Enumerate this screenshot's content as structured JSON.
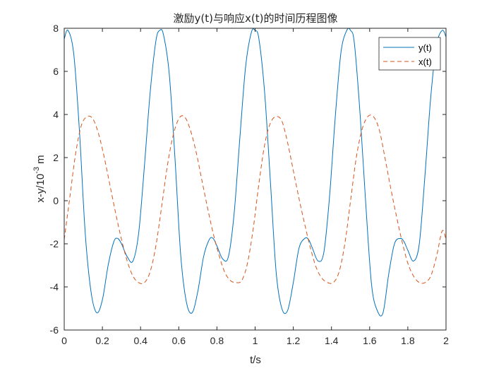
{
  "chart_data": {
    "type": "line",
    "title": "激励y(t)与响应x(t)的时间历程图像",
    "xlabel": "t/s",
    "ylabel_base": "x-y/10",
    "ylabel_exp": "-3",
    "ylabel_unit": " m",
    "xlim": [
      0,
      2
    ],
    "ylim": [
      -6,
      8
    ],
    "xticks": [
      0,
      0.2,
      0.4,
      0.6,
      0.8,
      1,
      1.2,
      1.4,
      1.6,
      1.8,
      2
    ],
    "xtick_labels": [
      "0",
      "0.2",
      "0.4",
      "0.6",
      "0.8",
      "1",
      "1.2",
      "1.4",
      "1.6",
      "1.8",
      "2"
    ],
    "yticks": [
      -6,
      -4,
      -2,
      0,
      2,
      4,
      6,
      8
    ],
    "ytick_labels": [
      "-6",
      "-4",
      "-2",
      "0",
      "2",
      "4",
      "6",
      "8"
    ],
    "grid": false,
    "legend_position": "top-right",
    "series": [
      {
        "name": "y(t)",
        "color": "#0072BD",
        "style": "solid",
        "x": [
          0,
          0.02,
          0.05,
          0.08,
          0.11,
          0.14,
          0.17,
          0.2,
          0.23,
          0.26,
          0.28,
          0.3,
          0.33,
          0.36,
          0.39,
          0.42,
          0.45,
          0.48,
          0.5,
          0.52,
          0.55,
          0.58,
          0.61,
          0.64,
          0.67,
          0.7,
          0.73,
          0.76,
          0.78,
          0.8,
          0.83,
          0.86,
          0.89,
          0.92,
          0.95,
          0.98,
          1.0,
          1.02,
          1.05,
          1.08,
          1.11,
          1.14,
          1.17,
          1.2,
          1.23,
          1.26,
          1.28,
          1.3,
          1.33,
          1.36,
          1.39,
          1.42,
          1.45,
          1.48,
          1.5,
          1.52,
          1.55,
          1.58,
          1.61,
          1.64,
          1.67,
          1.7,
          1.73,
          1.76,
          1.78,
          1.8,
          1.83,
          1.86,
          1.89,
          1.92,
          1.95,
          1.98,
          2.0
        ],
        "values": [
          7.5,
          7.9,
          6.8,
          3.2,
          -1.5,
          -4.2,
          -5.2,
          -4.6,
          -3.0,
          -1.9,
          -1.75,
          -2.0,
          -2.6,
          -2.8,
          -1.5,
          1.6,
          5.0,
          7.4,
          7.9,
          7.7,
          5.9,
          2.0,
          -2.5,
          -4.7,
          -5.2,
          -4.2,
          -2.6,
          -1.8,
          -1.75,
          -2.1,
          -2.7,
          -2.6,
          -0.6,
          2.9,
          6.2,
          7.8,
          7.9,
          7.5,
          5.0,
          0.9,
          -3.3,
          -5.0,
          -5.1,
          -3.8,
          -2.2,
          -1.75,
          -1.8,
          -2.2,
          -2.8,
          -2.4,
          0.2,
          3.9,
          6.9,
          7.9,
          7.9,
          7.3,
          4.0,
          -0.2,
          -3.9,
          -5.1,
          -5.2,
          -3.4,
          -2.0,
          -1.75,
          -1.9,
          -2.3,
          -2.8,
          -2.0,
          1.2,
          4.8,
          7.2,
          7.9,
          7.6
        ]
      },
      {
        "name": "x(t)",
        "color": "#D95319",
        "style": "dashed",
        "x": [
          0,
          0.03,
          0.06,
          0.09,
          0.12,
          0.15,
          0.18,
          0.21,
          0.24,
          0.27,
          0.3,
          0.33,
          0.36,
          0.39,
          0.42,
          0.45,
          0.48,
          0.51,
          0.54,
          0.57,
          0.6,
          0.63,
          0.66,
          0.69,
          0.72,
          0.75,
          0.78,
          0.81,
          0.84,
          0.87,
          0.9,
          0.93,
          0.96,
          0.99,
          1.02,
          1.05,
          1.08,
          1.11,
          1.14,
          1.17,
          1.2,
          1.23,
          1.26,
          1.29,
          1.32,
          1.35,
          1.38,
          1.41,
          1.44,
          1.47,
          1.5,
          1.53,
          1.56,
          1.59,
          1.62,
          1.65,
          1.68,
          1.71,
          1.74,
          1.77,
          1.8,
          1.83,
          1.86,
          1.89,
          1.92,
          1.95,
          1.98,
          2.0
        ],
        "values": [
          -1.8,
          0.2,
          2.2,
          3.5,
          3.9,
          3.8,
          3.1,
          2.0,
          0.7,
          -0.6,
          -1.8,
          -2.8,
          -3.5,
          -3.8,
          -3.8,
          -3.3,
          -2.1,
          -0.3,
          1.6,
          3.0,
          3.8,
          3.9,
          3.3,
          2.3,
          1.0,
          -0.3,
          -1.5,
          -2.5,
          -3.3,
          -3.7,
          -3.8,
          -3.7,
          -2.9,
          -1.3,
          0.8,
          2.6,
          3.6,
          3.9,
          3.7,
          2.7,
          1.4,
          0.1,
          -1.1,
          -2.2,
          -3.1,
          -3.6,
          -3.8,
          -3.8,
          -3.3,
          -2.0,
          0.0,
          2.0,
          3.3,
          3.9,
          3.9,
          3.3,
          2.0,
          0.6,
          -0.7,
          -1.9,
          -2.9,
          -3.5,
          -3.8,
          -3.8,
          -3.5,
          -2.6,
          -1.4,
          -1.8
        ]
      }
    ]
  }
}
